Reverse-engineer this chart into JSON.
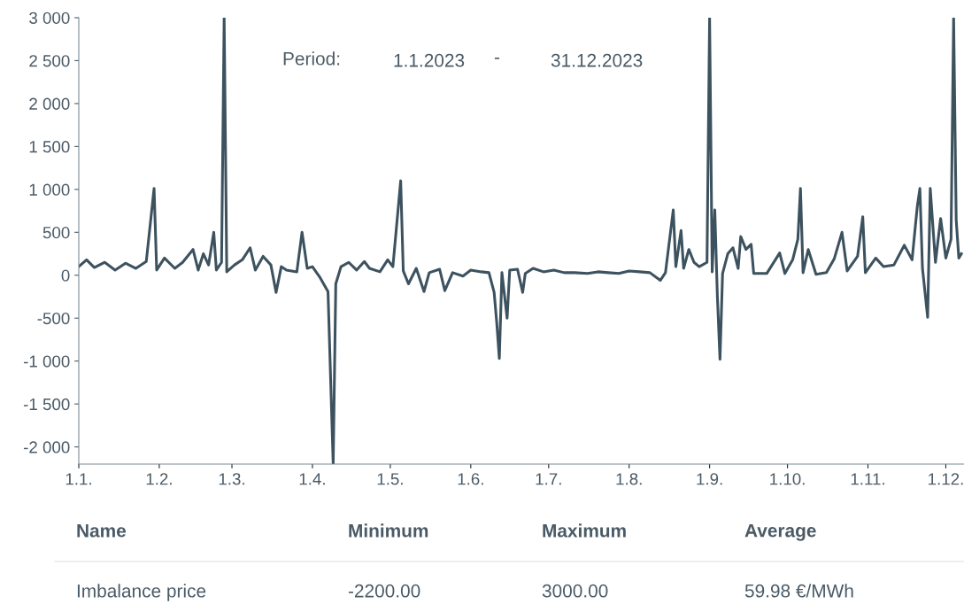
{
  "chart_data": {
    "type": "line",
    "x": [
      "2023-01-01",
      "2023-01-04",
      "2023-01-07",
      "2023-01-11",
      "2023-01-15",
      "2023-01-19",
      "2023-01-23",
      "2023-01-27",
      "2023-01-30",
      "2023-01-31",
      "2023-02-03",
      "2023-02-07",
      "2023-02-10",
      "2023-02-14",
      "2023-02-16",
      "2023-02-18",
      "2023-02-20",
      "2023-02-22",
      "2023-02-23",
      "2023-02-25",
      "2023-02-26",
      "2023-02-27",
      "2023-03-02",
      "2023-03-05",
      "2023-03-08",
      "2023-03-10",
      "2023-03-13",
      "2023-03-16",
      "2023-03-18",
      "2023-03-20",
      "2023-03-22",
      "2023-03-26",
      "2023-03-28",
      "2023-03-30",
      "2023-04-01",
      "2023-04-04",
      "2023-04-07",
      "2023-04-09",
      "2023-04-10",
      "2023-04-12",
      "2023-04-15",
      "2023-04-18",
      "2023-04-21",
      "2023-04-23",
      "2023-04-27",
      "2023-04-30",
      "2023-05-02",
      "2023-05-05",
      "2023-05-06",
      "2023-05-08",
      "2023-05-11",
      "2023-05-14",
      "2023-05-16",
      "2023-05-20",
      "2023-05-22",
      "2023-05-25",
      "2023-05-29",
      "2023-06-01",
      "2023-06-05",
      "2023-06-08",
      "2023-06-10",
      "2023-06-11",
      "2023-06-12",
      "2023-06-13",
      "2023-06-15",
      "2023-06-16",
      "2023-06-19",
      "2023-06-21",
      "2023-06-22",
      "2023-06-25",
      "2023-06-29",
      "2023-07-03",
      "2023-07-07",
      "2023-07-11",
      "2023-07-16",
      "2023-07-20",
      "2023-07-24",
      "2023-07-28",
      "2023-08-01",
      "2023-08-05",
      "2023-08-09",
      "2023-08-13",
      "2023-08-15",
      "2023-08-18",
      "2023-08-19",
      "2023-08-21",
      "2023-08-22",
      "2023-08-24",
      "2023-08-26",
      "2023-08-28",
      "2023-08-31",
      "2023-09-01",
      "2023-09-02",
      "2023-09-03",
      "2023-09-04",
      "2023-09-05",
      "2023-09-06",
      "2023-09-08",
      "2023-09-10",
      "2023-09-12",
      "2023-09-13",
      "2023-09-15",
      "2023-09-17",
      "2023-09-18",
      "2023-09-23",
      "2023-09-28",
      "2023-09-30",
      "2023-10-03",
      "2023-10-05",
      "2023-10-06",
      "2023-10-07",
      "2023-10-09",
      "2023-10-12",
      "2023-10-16",
      "2023-10-19",
      "2023-10-22",
      "2023-10-24",
      "2023-10-28",
      "2023-10-30",
      "2023-10-31",
      "2023-11-04",
      "2023-11-07",
      "2023-11-11",
      "2023-11-15",
      "2023-11-18",
      "2023-11-20",
      "2023-11-21",
      "2023-11-22",
      "2023-11-24",
      "2023-11-25",
      "2023-11-27",
      "2023-11-29",
      "2023-12-01",
      "2023-12-03",
      "2023-12-04",
      "2023-12-05",
      "2023-12-06",
      "2023-12-07"
    ],
    "series": [
      {
        "color": "#3d525f",
        "values": [
          100,
          180,
          90,
          150,
          60,
          140,
          80,
          160,
          1010,
          60,
          200,
          80,
          150,
          300,
          60,
          250,
          120,
          500,
          60,
          150,
          3000,
          40,
          120,
          180,
          320,
          60,
          220,
          120,
          -200,
          100,
          60,
          40,
          500,
          80,
          100,
          -30,
          -190,
          -2200,
          -100,
          100,
          150,
          60,
          160,
          80,
          40,
          180,
          100,
          1100,
          50,
          -100,
          80,
          -190,
          30,
          70,
          -180,
          30,
          -10,
          60,
          40,
          30,
          -200,
          -550,
          -970,
          30,
          -500,
          60,
          70,
          -200,
          20,
          80,
          40,
          60,
          30,
          30,
          20,
          40,
          30,
          20,
          50,
          40,
          30,
          -60,
          30,
          760,
          100,
          520,
          80,
          300,
          150,
          100,
          150,
          3000,
          40,
          760,
          -250,
          -980,
          20,
          250,
          320,
          80,
          450,
          300,
          360,
          20,
          20,
          260,
          20,
          180,
          420,
          1010,
          30,
          300,
          10,
          30,
          190,
          500,
          50,
          220,
          680,
          30,
          200,
          100,
          120,
          350,
          180,
          800,
          1010,
          80,
          -490,
          1010,
          150,
          660,
          200,
          420,
          3000,
          640,
          200,
          250
        ]
      }
    ],
    "xlim": [
      "2023-01-01",
      "2023-12-08"
    ],
    "xticks": [
      {
        "value": "2023-01-01",
        "label": "1.1."
      },
      {
        "value": "2023-02-01",
        "label": "1.2."
      },
      {
        "value": "2023-03-01",
        "label": "1.3."
      },
      {
        "value": "2023-04-01",
        "label": "1.4."
      },
      {
        "value": "2023-05-01",
        "label": "1.5."
      },
      {
        "value": "2023-06-01",
        "label": "1.6."
      },
      {
        "value": "2023-07-01",
        "label": "1.7."
      },
      {
        "value": "2023-08-01",
        "label": "1.8."
      },
      {
        "value": "2023-09-01",
        "label": "1.9."
      },
      {
        "value": "2023-10-01",
        "label": "1.10."
      },
      {
        "value": "2023-11-01",
        "label": "1.11."
      },
      {
        "value": "2023-12-01",
        "label": "1.12."
      }
    ],
    "ylim": [
      -2200,
      3000
    ],
    "yticks": [
      {
        "value": -2000,
        "label": "-2 000"
      },
      {
        "value": -1500,
        "label": "-1 500"
      },
      {
        "value": -1000,
        "label": "-1 000"
      },
      -500,
      0,
      500,
      {
        "value": 1000,
        "label": "1 000"
      },
      {
        "value": 1500,
        "label": "1 500"
      },
      {
        "value": 2000,
        "label": "2 000"
      },
      {
        "value": 2500,
        "label": "2 500"
      },
      {
        "value": 3000,
        "label": "3 000"
      }
    ],
    "grid": false,
    "legend": false,
    "marker": "none",
    "line_style": "solid",
    "annotations": [
      "Period:",
      "1.1.2023",
      "-",
      "31.12.2023",
      "Name",
      "Minimum",
      "Maximum",
      "Average",
      "Imbalance price",
      "-2200.00",
      "3000.00",
      "59.98 €/MWh"
    ]
  }
}
